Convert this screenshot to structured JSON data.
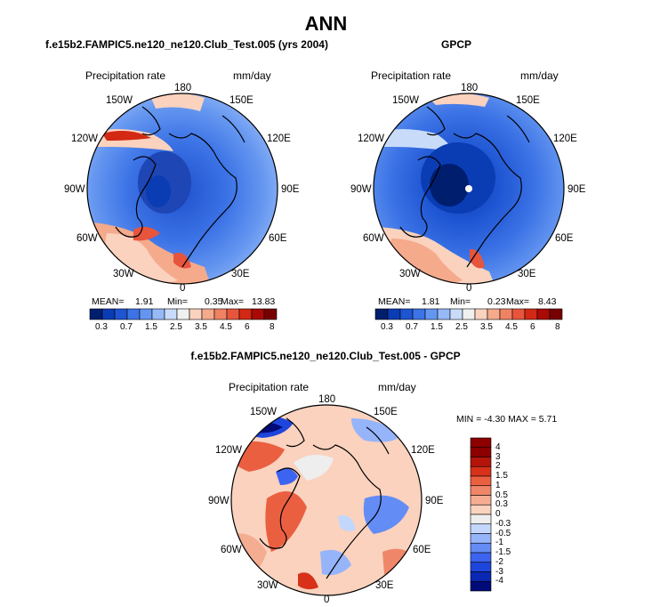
{
  "title": "ANN",
  "panels": [
    {
      "id": "model",
      "title": "f.e15b2.FAMPIC5.ne120_ne120.Club_Test.005 (yrs 2004)",
      "left_label": "Precipitation rate",
      "right_label": "mm/day",
      "stats": {
        "mean_label": "MEAN=",
        "mean": "1.91",
        "min_label": "Min=",
        "min": "0.35",
        "max_label": "Max=",
        "max": "13.83"
      }
    },
    {
      "id": "obs",
      "title": "GPCP",
      "left_label": "Precipitation rate",
      "right_label": "mm/day",
      "stats": {
        "mean_label": "MEAN=",
        "mean": "1.81",
        "min_label": "Min=",
        "min": "0.23",
        "max_label": "Max=",
        "max": "8.43"
      }
    },
    {
      "id": "diff",
      "title": "f.e15b2.FAMPIC5.ne120_ne120.Club_Test.005 - GPCP",
      "left_label": "Precipitation rate",
      "right_label": "mm/day",
      "stats_line": "MIN =   -4.30 MAX =    5.71"
    }
  ],
  "longitude_labels": [
    "180",
    "150E",
    "120E",
    "90E",
    "60E",
    "30E",
    "0",
    "30W",
    "60W",
    "90W",
    "120W",
    "150W"
  ],
  "abs_colorbar": {
    "colors": [
      "#001e6e",
      "#0a3cb4",
      "#1e55d2",
      "#3c73e6",
      "#6496f0",
      "#96b9f8",
      "#c8dcfa",
      "#f0f0f0",
      "#fad2be",
      "#f5aa8c",
      "#f08264",
      "#e6553c",
      "#d22814",
      "#aa0a05",
      "#780000"
    ],
    "tick_labels": [
      "0.3",
      "0.7",
      "1.5",
      "2.5",
      "3.5",
      "4.5",
      "6",
      "8"
    ]
  },
  "diff_colorbar": {
    "colors": [
      "#000a78",
      "#0a28b4",
      "#1e46dc",
      "#3c64f0",
      "#648cf5",
      "#96b4fa",
      "#c3d7fc",
      "#eeeeee",
      "#fad2be",
      "#f5ad91",
      "#f08669",
      "#eb5f41",
      "#d73219",
      "#b4140a",
      "#8c0000"
    ],
    "tick_labels": [
      "4",
      "3",
      "2",
      "1.5",
      "1",
      "0.5",
      "0.3",
      "0",
      "-0.3",
      "-0.5",
      "-1",
      "-1.5",
      "-2",
      "-3",
      "-4"
    ]
  }
}
